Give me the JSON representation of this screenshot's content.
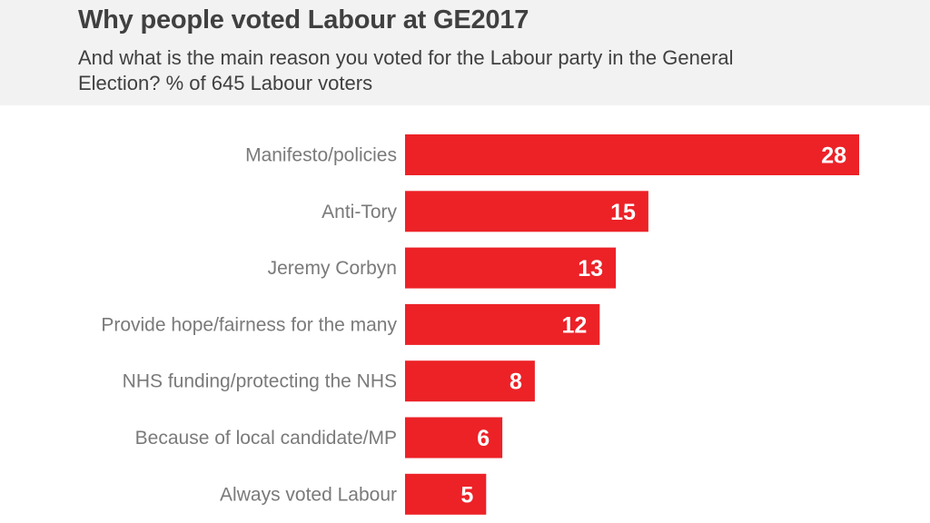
{
  "header": {
    "title": "Why people voted Labour at GE2017",
    "subtitle": "And what is the main reason you voted for the Labour party in the General Election? % of 645 Labour voters"
  },
  "colors": {
    "bar": "#ec2227",
    "header_bg": "#f2f2f3",
    "label": "#7a7a7a",
    "title": "#404040"
  },
  "chart_data": {
    "type": "bar",
    "orientation": "horizontal",
    "title": "Why people voted Labour at GE2017",
    "subtitle": "And what is the main reason you voted for the Labour party in the General Election? % of 645 Labour voters",
    "categories": [
      "Manifesto/policies",
      "Anti-Tory",
      "Jeremy Corbyn",
      "Provide hope/fairness for the many",
      "NHS funding/protecting the NHS",
      "Because of local candidate/MP",
      "Always voted Labour"
    ],
    "values": [
      28,
      15,
      13,
      12,
      8,
      6,
      5
    ],
    "value_labels": [
      "28",
      "15",
      "13",
      "12",
      "8",
      "6",
      "5"
    ],
    "xlim": [
      0,
      28
    ],
    "grid": false,
    "legend": "none",
    "data_labels": "inside-end"
  }
}
